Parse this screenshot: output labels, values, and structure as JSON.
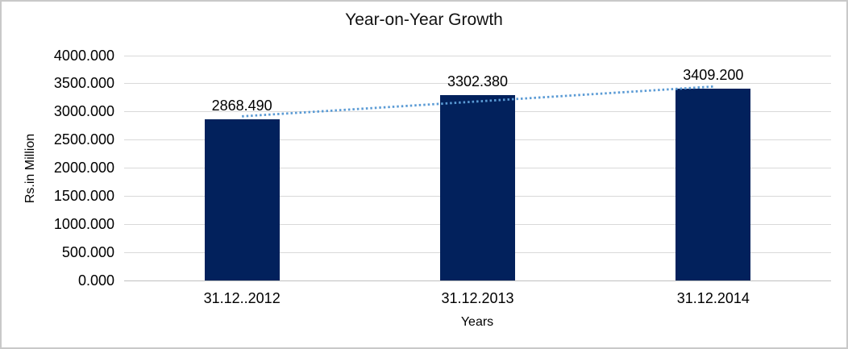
{
  "frame": {
    "background": "#FFFFFF",
    "border_color": "#C9C9C9"
  },
  "chart_data": {
    "type": "bar",
    "title": "Year-on-Year Growth",
    "xlabel": "Years",
    "ylabel": "Rs.in Million",
    "categories": [
      "31.12..2012",
      "31.12.2013",
      "31.12.2014"
    ],
    "values": [
      2868.49,
      3302.38,
      3409.2
    ],
    "data_labels": [
      "2868.490",
      "3302.380",
      "3409.200"
    ],
    "ylim": [
      0,
      4000
    ],
    "ytick_step": 500,
    "ytick_labels": [
      "0.000",
      "500.000",
      "1000.000",
      "1500.000",
      "2000.000",
      "2500.000",
      "3000.000",
      "3500.000",
      "4000.000"
    ],
    "grid": true,
    "legend": "none",
    "bar_color": "#02215C",
    "gridline_color": "#D9D9D9",
    "axis_line_color": "#BFBFBF",
    "text_color": "#000000",
    "trendline": {
      "type": "linear",
      "style": "dotted",
      "color": "#5B9BD5",
      "start_value": 2920,
      "end_value": 3450,
      "spans_categories": [
        "31.12..2012",
        "31.12.2014"
      ]
    }
  }
}
